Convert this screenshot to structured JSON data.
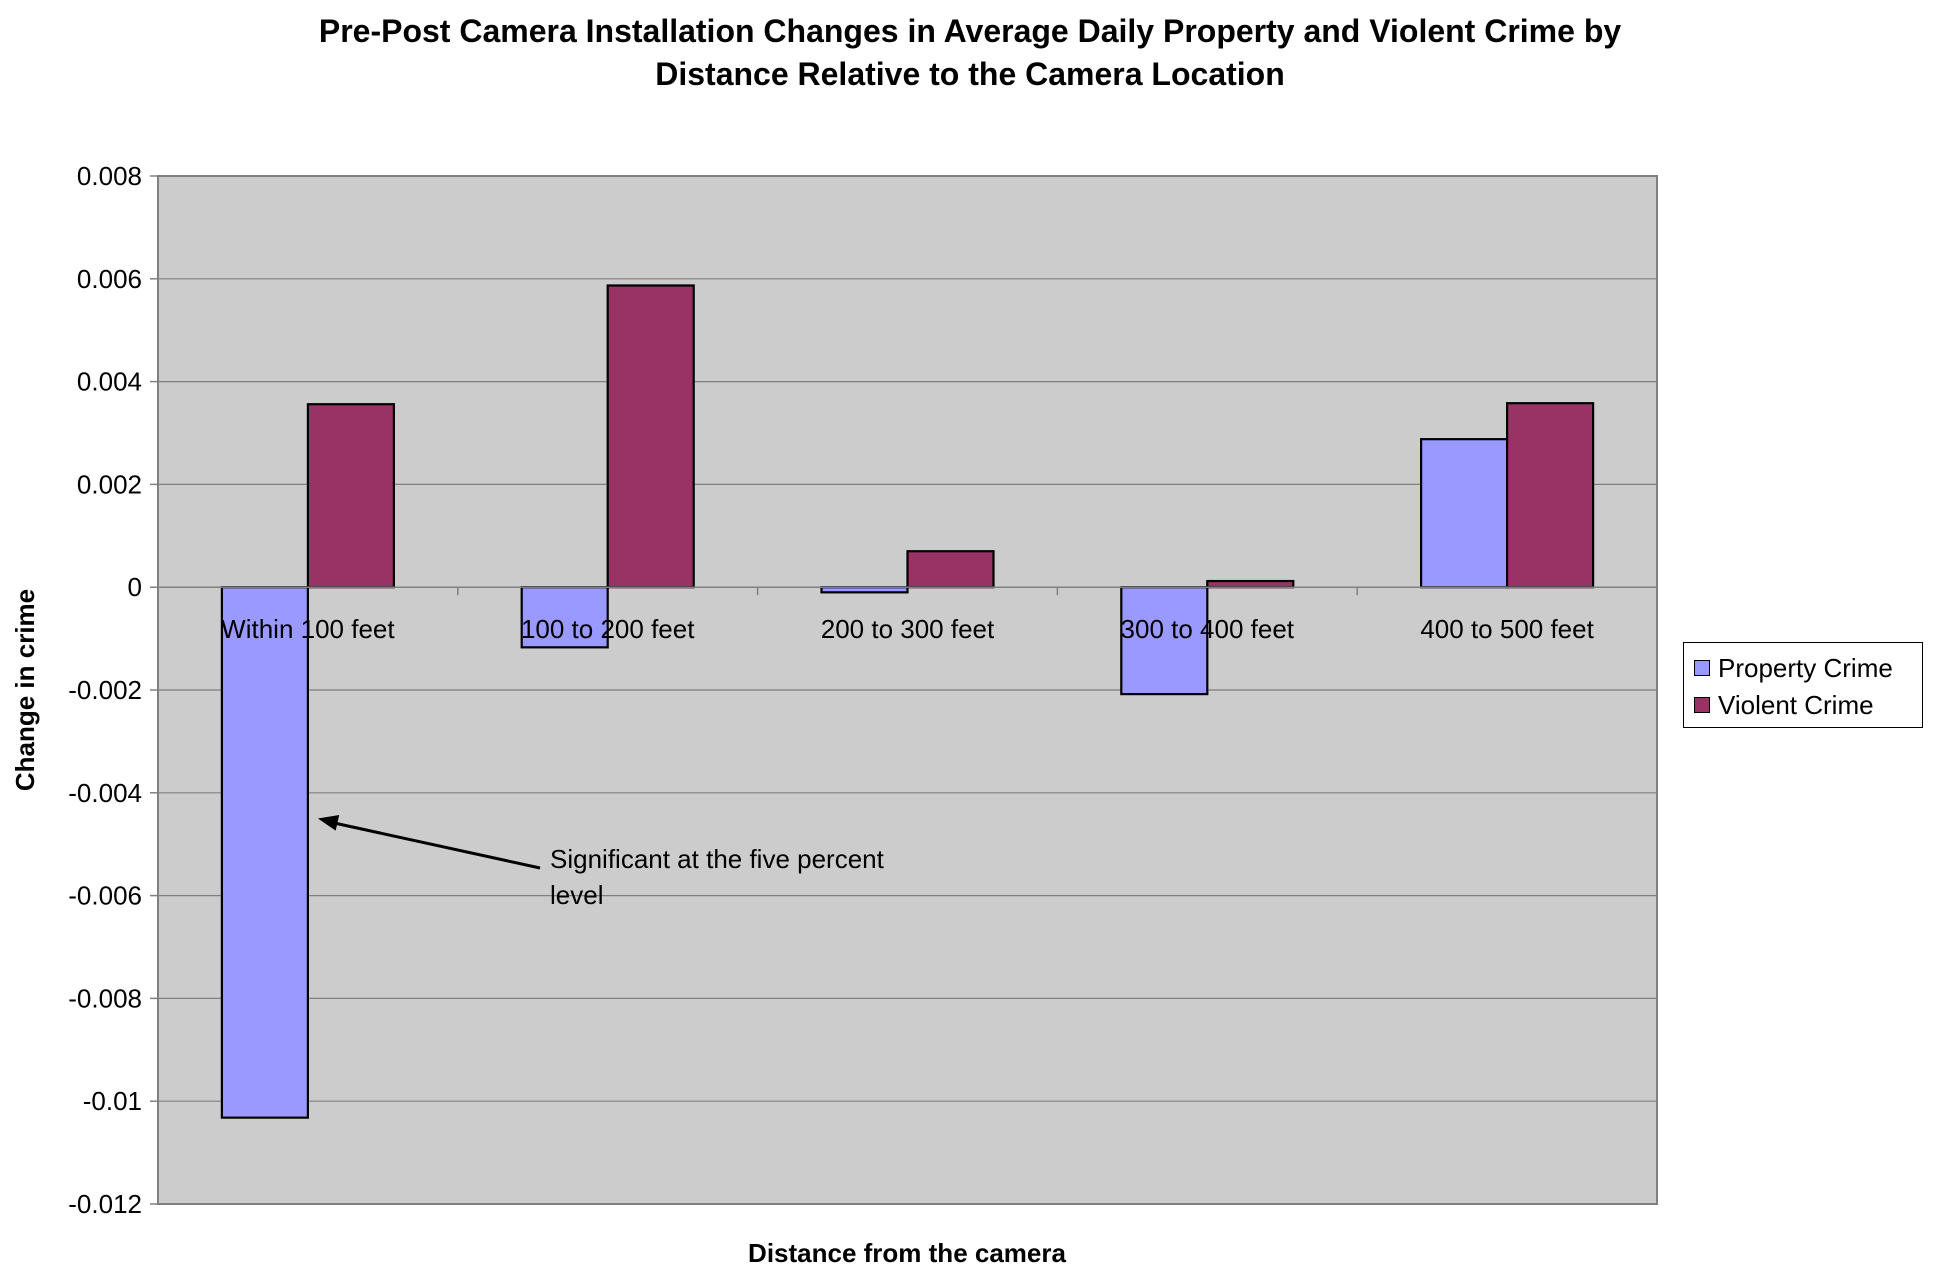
{
  "chart_data": {
    "type": "bar",
    "title_lines": [
      "Pre-Post Camera Installation Changes in Average Daily Property and Violent Crime by",
      "Distance Relative to the Camera Location"
    ],
    "xlabel": "Distance from the camera",
    "ylabel": "Change in crime",
    "categories": [
      "Within 100 feet",
      "100 to 200 feet",
      "200 to 300 feet",
      "300 to 400 feet",
      "400 to 500 feet"
    ],
    "series": [
      {
        "name": "Property Crime",
        "color": "#9999ff",
        "values": [
          -0.01032,
          -0.00117,
          -0.0001,
          -0.00208,
          0.00288
        ]
      },
      {
        "name": "Violent Crime",
        "color": "#993366",
        "values": [
          0.00356,
          0.00587,
          0.0007,
          0.00012,
          0.00358
        ]
      }
    ],
    "ylim": [
      -0.012,
      0.008
    ],
    "yticks": [
      "0.008",
      "0.006",
      "0.004",
      "0.002",
      "0",
      "-0.002",
      "-0.004",
      "-0.006",
      "-0.008",
      "-0.01",
      "-0.012"
    ],
    "grid": true,
    "plot_background": "#cccccc",
    "gridline_color": "#808080",
    "legend_position": "right",
    "annotation": {
      "lines": [
        "Significant at the five percent",
        "level"
      ],
      "target_category": "Within 100 feet",
      "target_series": "Property Crime",
      "target_value": -0.0045
    }
  }
}
